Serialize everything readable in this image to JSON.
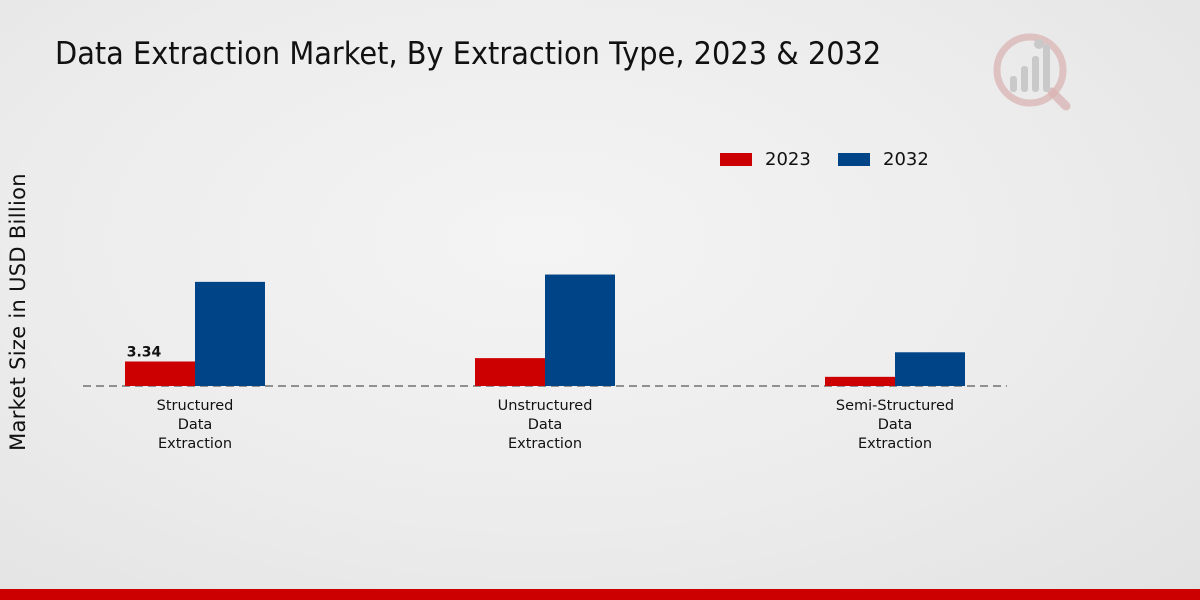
{
  "chart_data": {
    "type": "bar",
    "title": "Data Extraction Market, By Extraction Type, 2023 & 2032",
    "xlabel": "",
    "ylabel": "Market Size in USD Billion",
    "categories": [
      [
        "Structured",
        "Data",
        "Extraction"
      ],
      [
        "Unstructured",
        "Data",
        "Extraction"
      ],
      [
        "Semi-Structured",
        "Data",
        "Extraction"
      ]
    ],
    "series": [
      {
        "name": "2023",
        "color": "#cc0000",
        "values": [
          3.34,
          3.8,
          1.25
        ],
        "labels": [
          "3.34",
          null,
          null
        ]
      },
      {
        "name": "2032",
        "color": "#004488",
        "values": [
          14.2,
          15.2,
          4.6
        ],
        "labels": [
          null,
          null,
          null
        ]
      }
    ],
    "ylim": [
      0,
      30
    ],
    "grid": false,
    "legend_position": "top-right"
  }
}
